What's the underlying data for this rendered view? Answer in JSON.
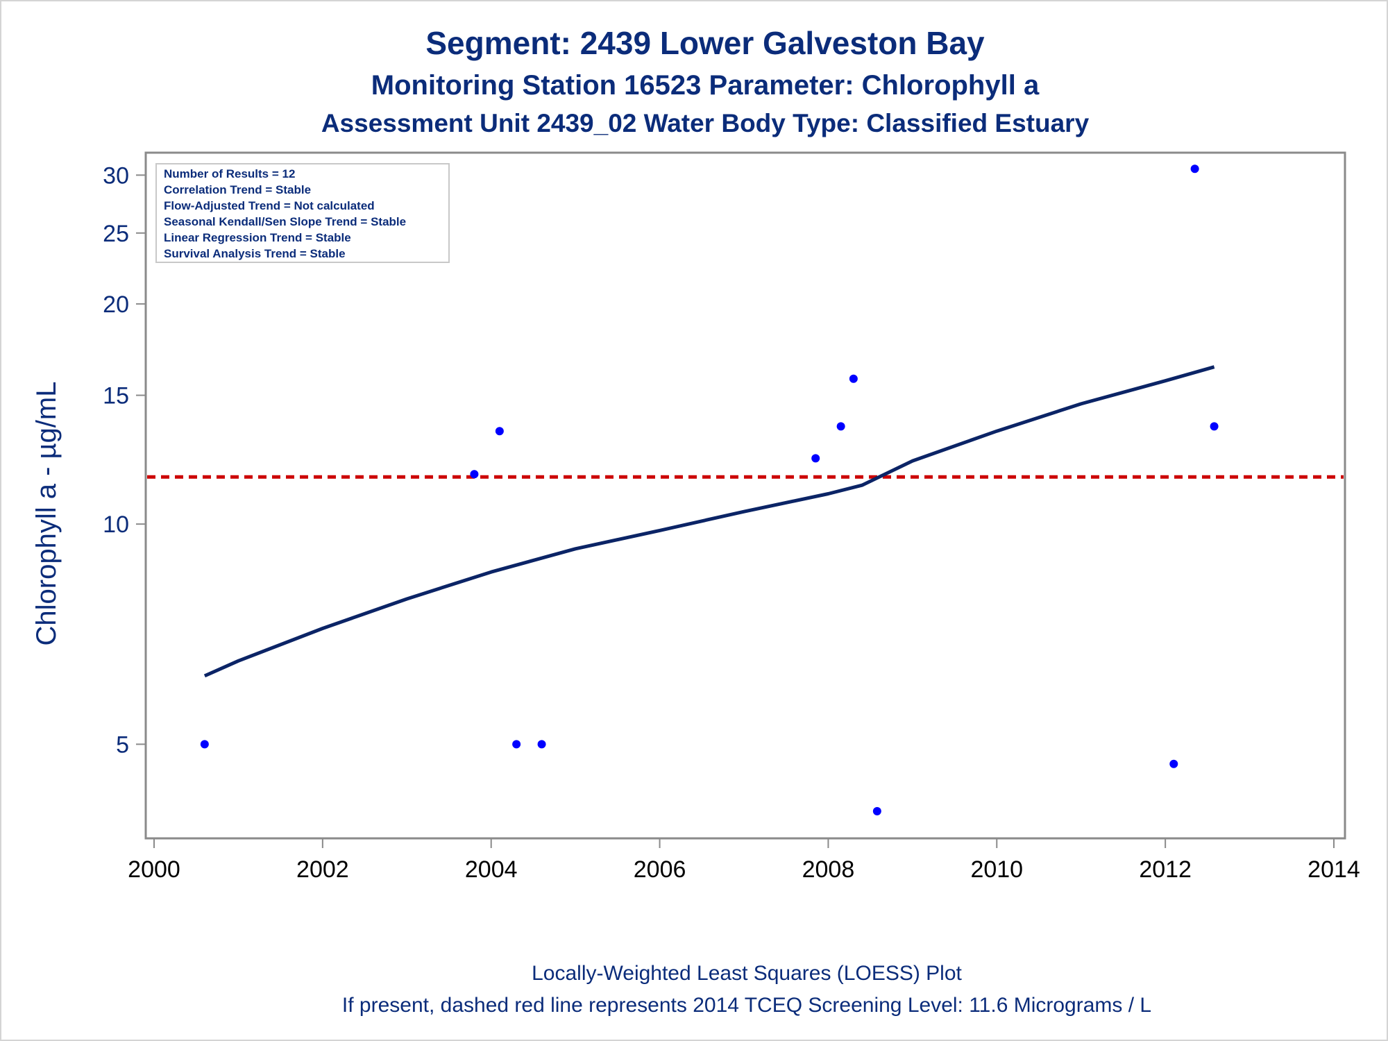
{
  "chart_data": {
    "type": "scatter",
    "title": "Segment: 2439  Lower Galveston Bay",
    "subtitle": "Monitoring Station 16523 Parameter: Chlorophyll a",
    "subtitle2": "Assessment Unit 2439_02   Water Body Type: Classified Estuary",
    "xlabel": "",
    "ylabel": "Chlorophyll a -  µg/mL",
    "xlim": [
      2000,
      2014
    ],
    "ylim": [
      3.8,
      31.5
    ],
    "yscale": "log",
    "xticks": [
      "2000",
      "2002",
      "2004",
      "2006",
      "2008",
      "2010",
      "2012",
      "2014"
    ],
    "yticks": [
      "5",
      "10",
      "15",
      "20",
      "25",
      "30"
    ],
    "grid": false,
    "points": [
      {
        "x": 2000.6,
        "y": 5.0
      },
      {
        "x": 2003.8,
        "y": 11.7
      },
      {
        "x": 2004.1,
        "y": 13.4
      },
      {
        "x": 2004.3,
        "y": 5.0
      },
      {
        "x": 2004.6,
        "y": 5.0
      },
      {
        "x": 2007.85,
        "y": 12.3
      },
      {
        "x": 2008.15,
        "y": 13.6
      },
      {
        "x": 2008.3,
        "y": 15.8
      },
      {
        "x": 2008.58,
        "y": 4.05
      },
      {
        "x": 2012.1,
        "y": 4.7
      },
      {
        "x": 2012.35,
        "y": 30.6
      },
      {
        "x": 2012.58,
        "y": 13.6
      }
    ],
    "loess": [
      {
        "x": 2000.6,
        "y": 6.2
      },
      {
        "x": 2001.0,
        "y": 6.5
      },
      {
        "x": 2002.0,
        "y": 7.2
      },
      {
        "x": 2003.0,
        "y": 7.9
      },
      {
        "x": 2004.0,
        "y": 8.6
      },
      {
        "x": 2005.0,
        "y": 9.25
      },
      {
        "x": 2006.0,
        "y": 9.8
      },
      {
        "x": 2007.0,
        "y": 10.4
      },
      {
        "x": 2008.0,
        "y": 11.0
      },
      {
        "x": 2008.4,
        "y": 11.3
      },
      {
        "x": 2009.0,
        "y": 12.2
      },
      {
        "x": 2010.0,
        "y": 13.4
      },
      {
        "x": 2011.0,
        "y": 14.6
      },
      {
        "x": 2012.0,
        "y": 15.7
      },
      {
        "x": 2012.58,
        "y": 16.4
      }
    ],
    "screening_level": 11.6,
    "colors": {
      "points": "#0000ff",
      "loess": "#0b2466",
      "screening": "#cc0000",
      "text": "#0b2c7a"
    },
    "info_box": [
      "Number of Results = 12",
      "Correlation Trend = Stable",
      "Flow-Adjusted Trend = Not calculated",
      "Seasonal Kendall/Sen Slope Trend = Stable",
      "Linear Regression Trend = Stable",
      "Survival Analysis Trend = Stable"
    ],
    "footnote1": "Locally-Weighted Least Squares (LOESS) Plot",
    "footnote2": "If present, dashed red line represents 2014 TCEQ Screening Level: 11.6 Micrograms / L"
  }
}
